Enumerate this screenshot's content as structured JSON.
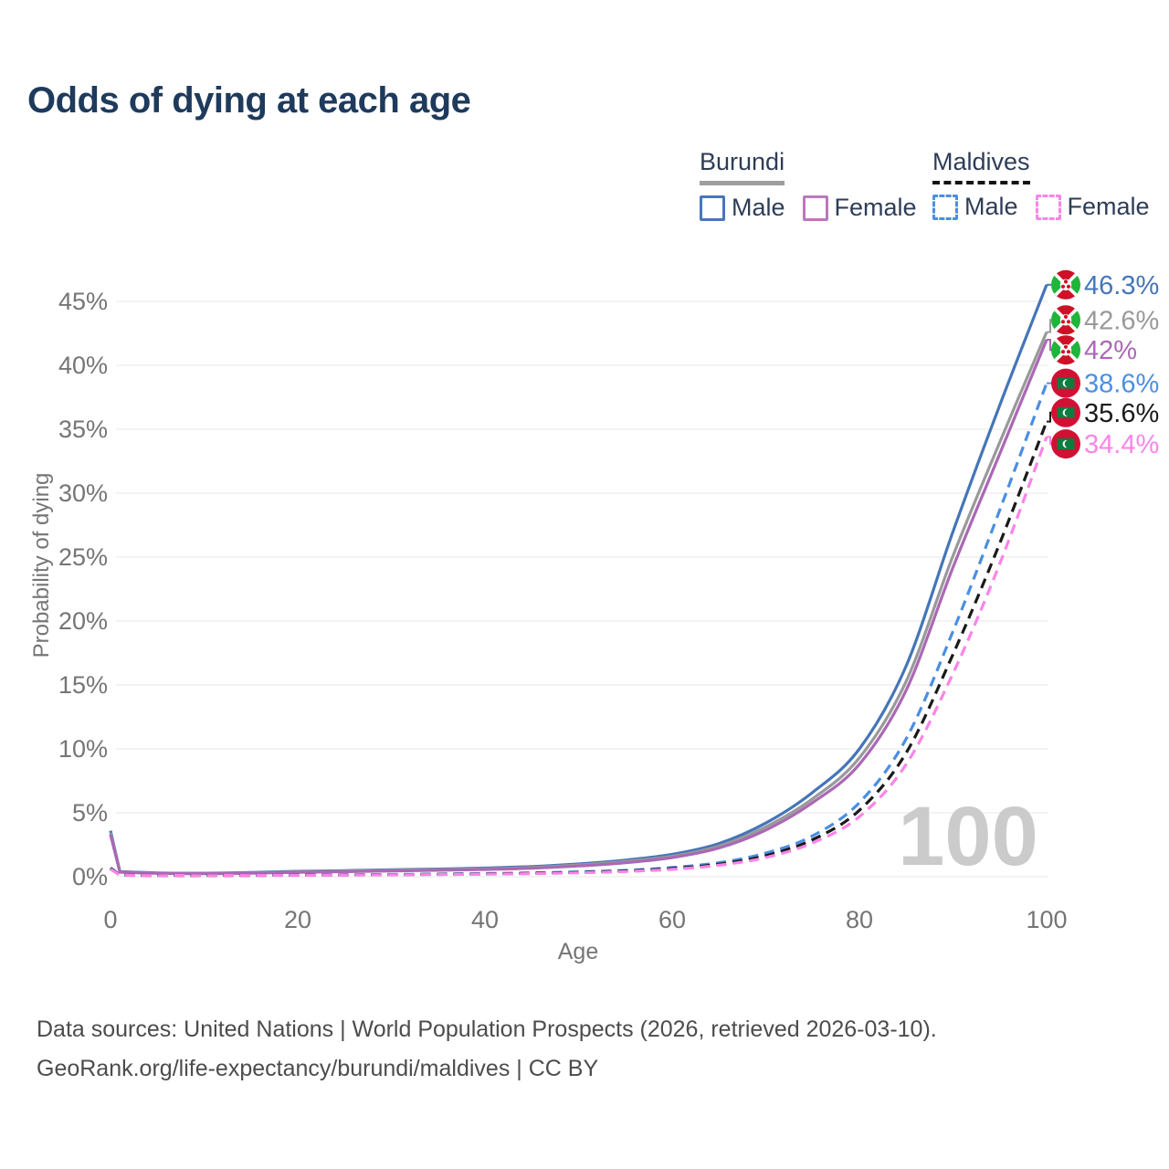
{
  "title": "Odds of dying at each age",
  "watermark_age": "100",
  "legend": {
    "groups": [
      {
        "name": "Burundi",
        "line_style": "solid",
        "underline_color": "#9e9e9e",
        "items": [
          {
            "label": "Male",
            "color": "#4a76b8"
          },
          {
            "label": "Female",
            "color": "#bb79bd"
          }
        ]
      },
      {
        "name": "Maldives",
        "line_style": "dashed",
        "underline_color": "#141414",
        "items": [
          {
            "label": "Male",
            "color": "#4a8fe2"
          },
          {
            "label": "Female",
            "color": "#fb84e8"
          }
        ]
      }
    ]
  },
  "axes": {
    "y_title": "Probability of dying",
    "x_title": "Age",
    "y_tick_labels": [
      "0%",
      "5%",
      "10%",
      "15%",
      "20%",
      "25%",
      "30%",
      "35%",
      "40%",
      "45%"
    ],
    "x_tick_labels": [
      "0",
      "20",
      "40",
      "60",
      "80",
      "100"
    ]
  },
  "footer": {
    "line1": "Data sources: United Nations | World Population Prospects (2026, retrieved 2026-03-10).",
    "line2": "GeoRank.org/life-expectancy/burundi/maldives | CC BY"
  },
  "flag_colors": {
    "burundi_red": "#ce1126",
    "burundi_green": "#1eb53a",
    "maldives_red": "#d21034",
    "maldives_green": "#0b7d3e"
  },
  "chart_data": {
    "type": "line",
    "title": "Odds of dying at each age",
    "xlabel": "Age",
    "ylabel": "Probability of dying",
    "xlim": [
      0,
      100
    ],
    "ylim": [
      0,
      47
    ],
    "x_ticks": [
      0,
      20,
      40,
      60,
      80,
      100
    ],
    "y_ticks_pct": [
      0,
      5,
      10,
      15,
      20,
      25,
      30,
      35,
      40,
      45
    ],
    "grid": "horizontal",
    "legend_position": "top-right",
    "series": [
      {
        "name": "Burundi Male",
        "country": "Burundi",
        "sex": "Male",
        "color": "#4575b8",
        "line_style": "solid",
        "flag": "burundi",
        "end_label": "46.3%",
        "end_value_pct": 46.3,
        "label_pct": 46.3,
        "points": [
          [
            0,
            3.6
          ],
          [
            1,
            0.4
          ],
          [
            5,
            0.3
          ],
          [
            10,
            0.28
          ],
          [
            15,
            0.33
          ],
          [
            20,
            0.42
          ],
          [
            25,
            0.48
          ],
          [
            30,
            0.54
          ],
          [
            35,
            0.6
          ],
          [
            40,
            0.68
          ],
          [
            45,
            0.8
          ],
          [
            50,
            1.0
          ],
          [
            55,
            1.3
          ],
          [
            60,
            1.75
          ],
          [
            65,
            2.6
          ],
          [
            70,
            4.2
          ],
          [
            75,
            6.6
          ],
          [
            80,
            10.0
          ],
          [
            85,
            16.5
          ],
          [
            90,
            27.0
          ],
          [
            95,
            36.9
          ],
          [
            100,
            46.3
          ]
        ]
      },
      {
        "name": "Burundi Both sexes",
        "country": "Burundi",
        "sex": "Both",
        "color": "#999999",
        "line_style": "solid",
        "flag": "burundi",
        "end_label": "42.6%",
        "end_value_pct": 42.6,
        "label_pct": 43.55,
        "points": [
          [
            0,
            3.45
          ],
          [
            1,
            0.38
          ],
          [
            5,
            0.28
          ],
          [
            10,
            0.26
          ],
          [
            15,
            0.3
          ],
          [
            20,
            0.38
          ],
          [
            25,
            0.44
          ],
          [
            30,
            0.5
          ],
          [
            35,
            0.55
          ],
          [
            40,
            0.62
          ],
          [
            45,
            0.73
          ],
          [
            50,
            0.92
          ],
          [
            55,
            1.2
          ],
          [
            60,
            1.6
          ],
          [
            65,
            2.4
          ],
          [
            70,
            3.9
          ],
          [
            75,
            6.1
          ],
          [
            80,
            9.3
          ],
          [
            85,
            15.3
          ],
          [
            90,
            25.1
          ],
          [
            95,
            34.0
          ],
          [
            100,
            42.6
          ]
        ]
      },
      {
        "name": "Burundi Female",
        "country": "Burundi",
        "sex": "Female",
        "color": "#aa68b4",
        "line_style": "solid",
        "flag": "burundi",
        "end_label": "42%",
        "end_value_pct": 42.0,
        "label_pct": 41.2,
        "points": [
          [
            0,
            3.3
          ],
          [
            1,
            0.36
          ],
          [
            5,
            0.27
          ],
          [
            10,
            0.24
          ],
          [
            15,
            0.28
          ],
          [
            20,
            0.35
          ],
          [
            25,
            0.4
          ],
          [
            30,
            0.46
          ],
          [
            35,
            0.51
          ],
          [
            40,
            0.57
          ],
          [
            45,
            0.67
          ],
          [
            50,
            0.84
          ],
          [
            55,
            1.1
          ],
          [
            60,
            1.5
          ],
          [
            65,
            2.25
          ],
          [
            70,
            3.65
          ],
          [
            75,
            5.8
          ],
          [
            80,
            8.8
          ],
          [
            85,
            14.6
          ],
          [
            90,
            24.2
          ],
          [
            95,
            33.1
          ],
          [
            100,
            42.0
          ]
        ]
      },
      {
        "name": "Maldives Male",
        "country": "Maldives",
        "sex": "Male",
        "color": "#4a8fe2",
        "line_style": "dashed",
        "flag": "maldives",
        "end_label": "38.6%",
        "end_value_pct": 38.6,
        "label_pct": 38.6,
        "points": [
          [
            0,
            0.7
          ],
          [
            1,
            0.14
          ],
          [
            5,
            0.1
          ],
          [
            10,
            0.09
          ],
          [
            15,
            0.11
          ],
          [
            20,
            0.14
          ],
          [
            25,
            0.16
          ],
          [
            30,
            0.18
          ],
          [
            35,
            0.21
          ],
          [
            40,
            0.25
          ],
          [
            45,
            0.3
          ],
          [
            50,
            0.38
          ],
          [
            55,
            0.5
          ],
          [
            60,
            0.72
          ],
          [
            65,
            1.1
          ],
          [
            70,
            1.85
          ],
          [
            75,
            3.2
          ],
          [
            80,
            5.8
          ],
          [
            85,
            10.8
          ],
          [
            90,
            19.2
          ],
          [
            95,
            28.7
          ],
          [
            100,
            38.6
          ]
        ]
      },
      {
        "name": "Maldives Both sexes",
        "country": "Maldives",
        "sex": "Both",
        "color": "#1a1a1a",
        "line_style": "dashed",
        "flag": "maldives",
        "end_label": "35.6%",
        "end_value_pct": 35.6,
        "label_pct": 36.3,
        "points": [
          [
            0,
            0.65
          ],
          [
            1,
            0.13
          ],
          [
            5,
            0.09
          ],
          [
            10,
            0.08
          ],
          [
            15,
            0.1
          ],
          [
            20,
            0.12
          ],
          [
            25,
            0.14
          ],
          [
            30,
            0.16
          ],
          [
            35,
            0.19
          ],
          [
            40,
            0.22
          ],
          [
            45,
            0.27
          ],
          [
            50,
            0.34
          ],
          [
            55,
            0.45
          ],
          [
            60,
            0.64
          ],
          [
            65,
            0.98
          ],
          [
            70,
            1.65
          ],
          [
            75,
            2.9
          ],
          [
            80,
            5.2
          ],
          [
            85,
            9.7
          ],
          [
            90,
            17.4
          ],
          [
            95,
            26.1
          ],
          [
            100,
            35.6
          ]
        ]
      },
      {
        "name": "Maldives Female",
        "country": "Maldives",
        "sex": "Female",
        "color": "#fb84e8",
        "line_style": "dashed",
        "flag": "maldives",
        "end_label": "34.4%",
        "end_value_pct": 34.4,
        "label_pct": 33.85,
        "points": [
          [
            0,
            0.6
          ],
          [
            1,
            0.12
          ],
          [
            5,
            0.08
          ],
          [
            10,
            0.07
          ],
          [
            15,
            0.09
          ],
          [
            20,
            0.11
          ],
          [
            25,
            0.13
          ],
          [
            30,
            0.15
          ],
          [
            35,
            0.17
          ],
          [
            40,
            0.2
          ],
          [
            45,
            0.24
          ],
          [
            50,
            0.31
          ],
          [
            55,
            0.41
          ],
          [
            60,
            0.58
          ],
          [
            65,
            0.9
          ],
          [
            70,
            1.5
          ],
          [
            75,
            2.65
          ],
          [
            80,
            4.7
          ],
          [
            85,
            8.8
          ],
          [
            90,
            15.9
          ],
          [
            95,
            24.5
          ],
          [
            100,
            34.4
          ]
        ]
      }
    ]
  }
}
